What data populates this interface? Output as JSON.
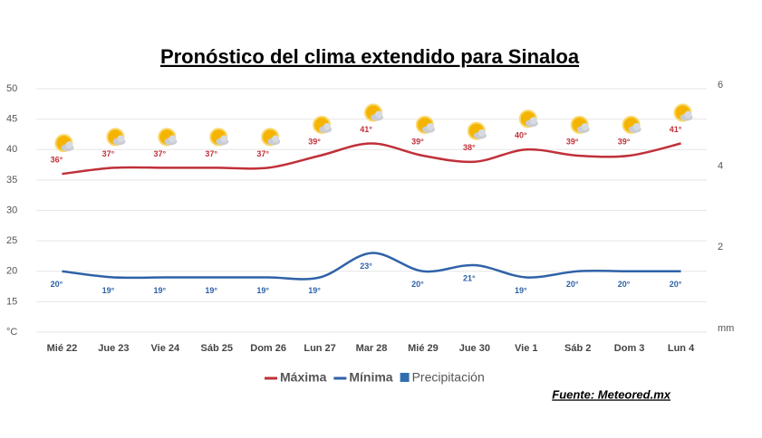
{
  "chart_data": {
    "type": "line",
    "title": "Pronóstico del clima extendido para Sinaloa",
    "categories": [
      "Mié 22",
      "Jue 23",
      "Vie 24",
      "Sáb 25",
      "Dom 26",
      "Lun 27",
      "Mar 28",
      "Mié 29",
      "Jue 30",
      "Vie 1",
      "Sáb 2",
      "Dom 3",
      "Lun 4"
    ],
    "series": [
      {
        "name": "Máxima",
        "color": "#c0303a",
        "values": [
          36,
          37,
          37,
          37,
          37,
          39,
          41,
          39,
          38,
          40,
          39,
          39,
          41
        ],
        "value_labels": [
          "36°",
          "37°",
          "37°",
          "37°",
          "37°",
          "39°",
          "41°",
          "39°",
          "38°",
          "40°",
          "39°",
          "39°",
          "41°"
        ]
      },
      {
        "name": "Mínima",
        "color": "#2f62a8",
        "values": [
          20,
          19,
          19,
          19,
          19,
          19,
          23,
          20,
          21,
          19,
          20,
          20,
          20
        ],
        "value_labels": [
          "20°",
          "19°",
          "19°",
          "19°",
          "19°",
          "19°",
          "23°",
          "20°",
          "21°",
          "19°",
          "20°",
          "20°",
          "20°"
        ]
      },
      {
        "name": "Precipitación",
        "color": "#2f6fb0",
        "axis": "y2",
        "type": "bar",
        "values": [
          0,
          0,
          0,
          0,
          0,
          0,
          0,
          0,
          0,
          0,
          0,
          0,
          0
        ]
      }
    ],
    "ylim": [
      10,
      50
    ],
    "yticks": [
      {
        "value": 10,
        "label": "°C"
      },
      15,
      20,
      25,
      30,
      35,
      40,
      45,
      50
    ],
    "y2lim": [
      0,
      6
    ],
    "y2ticks": [
      {
        "value": 0,
        "label": "mm"
      },
      2,
      4,
      6
    ],
    "grid": true,
    "source": "Fuente: Meteored.mx"
  }
}
